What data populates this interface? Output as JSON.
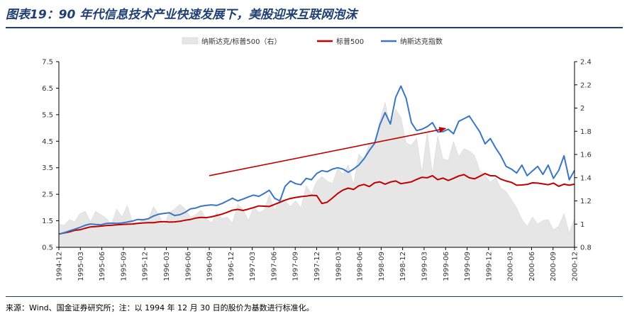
{
  "title": "图表19：90 年代信息技术产业快速发展下，美股迎来互联网泡沫",
  "source": "来源：Wind、国金证券研究所；注：以 1994 年 12 月 30 日的股价为基数进行标准化。",
  "chart_data": {
    "type": "line",
    "legend_position": "top-center",
    "grid": false,
    "x_ticks": [
      "1994-12",
      "1995-03",
      "1995-06",
      "1995-09",
      "1995-12",
      "1996-03",
      "1996-06",
      "1996-09",
      "1996-12",
      "1997-03",
      "1997-06",
      "1997-09",
      "1997-12",
      "1998-03",
      "1998-06",
      "1998-09",
      "1998-12",
      "1999-03",
      "1999-06",
      "1999-09",
      "1999-12",
      "2000-03",
      "2000-06",
      "2000-09",
      "2000-12"
    ],
    "y_left": {
      "min": 0.5,
      "max": 7.5,
      "ticks": [
        "0.5",
        "1.5",
        "2.5",
        "3.5",
        "4.5",
        "5.5",
        "6.5",
        "7.5"
      ]
    },
    "y_right": {
      "min": 0.8,
      "max": 2.4,
      "ticks": [
        "0.8",
        "1",
        "1.2",
        "1.4",
        "1.6",
        "1.8",
        "2",
        "2.2",
        "2.4"
      ]
    },
    "series": [
      {
        "name": "纳斯达克/标普500（右）",
        "axis": "right",
        "kind": "area",
        "color": "#e6e6e6",
        "values": [
          1.0,
          0.99,
          1.04,
          1.02,
          1.09,
          1.11,
          1.02,
          1.11,
          1.08,
          1.05,
          1.0,
          1.13,
          1.06,
          1.16,
          1.02,
          1.01,
          1.04,
          1.04,
          1.15,
          1.08,
          0.99,
          1.1,
          1.13,
          1.17,
          1.13,
          1.06,
          1.08,
          1.12,
          1.05,
          1.01,
          1.1,
          1.05,
          1.06,
          1.01,
          1.17,
          1.13,
          1.03,
          1.15,
          1.1,
          1.12,
          1.25,
          1.12,
          1.22,
          1.2,
          1.15,
          1.2,
          1.14,
          1.33,
          1.26,
          1.37,
          1.41,
          1.37,
          1.35,
          1.48,
          1.43,
          1.51,
          1.34,
          1.6,
          1.56,
          1.7,
          1.68,
          1.89,
          2.05,
          1.83,
          1.99,
          1.92,
          1.7,
          1.68,
          1.74,
          1.44,
          1.79,
          1.43,
          1.76,
          1.56,
          1.55,
          1.71,
          1.58,
          1.65,
          1.63,
          1.59,
          1.46,
          1.42,
          1.36,
          1.4,
          1.31,
          1.28,
          1.21,
          1.14,
          1.04,
          0.98,
          1.06,
          1.0,
          1.03,
          1.04,
          0.95,
          0.98,
          1.09,
          0.92,
          1.05
        ]
      },
      {
        "name": "标普500",
        "axis": "left",
        "kind": "line",
        "color": "#c00000",
        "values": [
          1.0,
          1.04,
          1.08,
          1.14,
          1.16,
          1.22,
          1.27,
          1.28,
          1.3,
          1.32,
          1.33,
          1.35,
          1.36,
          1.37,
          1.38,
          1.4,
          1.42,
          1.43,
          1.43,
          1.46,
          1.47,
          1.45,
          1.46,
          1.48,
          1.52,
          1.55,
          1.6,
          1.63,
          1.62,
          1.65,
          1.7,
          1.75,
          1.82,
          1.9,
          1.93,
          1.89,
          1.94,
          2.0,
          2.06,
          2.05,
          2.04,
          2.12,
          2.2,
          2.28,
          2.34,
          2.38,
          2.41,
          2.43,
          2.46,
          2.45,
          2.15,
          2.2,
          2.36,
          2.53,
          2.66,
          2.73,
          2.68,
          2.82,
          2.87,
          2.79,
          2.93,
          2.97,
          2.88,
          2.96,
          3.0,
          2.9,
          2.93,
          2.97,
          3.06,
          3.14,
          3.12,
          3.2,
          3.05,
          3.11,
          3.02,
          3.1,
          3.19,
          3.24,
          3.12,
          3.08,
          3.18,
          3.28,
          3.2,
          3.19,
          3.07,
          3.0,
          2.95,
          2.84,
          2.85,
          2.87,
          2.93,
          2.92,
          2.89,
          2.86,
          2.92,
          2.8,
          2.88,
          2.84,
          2.88
        ]
      },
      {
        "name": "纳斯达克指数",
        "axis": "left",
        "kind": "line",
        "color": "#3a76c4",
        "values": [
          1.0,
          1.05,
          1.12,
          1.18,
          1.25,
          1.33,
          1.38,
          1.36,
          1.35,
          1.4,
          1.41,
          1.4,
          1.42,
          1.45,
          1.49,
          1.55,
          1.54,
          1.58,
          1.68,
          1.75,
          1.78,
          1.8,
          1.7,
          1.73,
          1.82,
          1.95,
          1.98,
          2.05,
          2.08,
          2.1,
          2.08,
          2.15,
          2.25,
          2.35,
          2.25,
          2.32,
          2.4,
          2.47,
          2.42,
          2.53,
          2.65,
          2.35,
          2.25,
          2.8,
          3.0,
          2.9,
          2.86,
          3.1,
          3.05,
          3.28,
          3.39,
          3.35,
          3.45,
          3.5,
          3.45,
          3.33,
          3.45,
          3.6,
          3.84,
          4.15,
          4.42,
          5.12,
          5.58,
          5.15,
          6.15,
          6.58,
          6.12,
          5.2,
          4.9,
          4.95,
          5.05,
          5.2,
          4.85,
          4.86,
          4.95,
          4.78,
          5.25,
          5.35,
          5.45,
          5.15,
          4.85,
          4.4,
          4.6,
          4.25,
          3.95,
          3.55,
          3.45,
          3.3,
          3.6,
          3.2,
          3.38,
          3.55,
          3.25,
          3.6,
          3.1,
          3.4,
          3.95,
          3.05,
          3.4
        ]
      }
    ],
    "annotation": {
      "type": "arrow",
      "color": "#c00000",
      "from": {
        "x_index": 7,
        "y": 3.2
      },
      "to": {
        "x_index": 18,
        "y": 4.98
      }
    }
  }
}
